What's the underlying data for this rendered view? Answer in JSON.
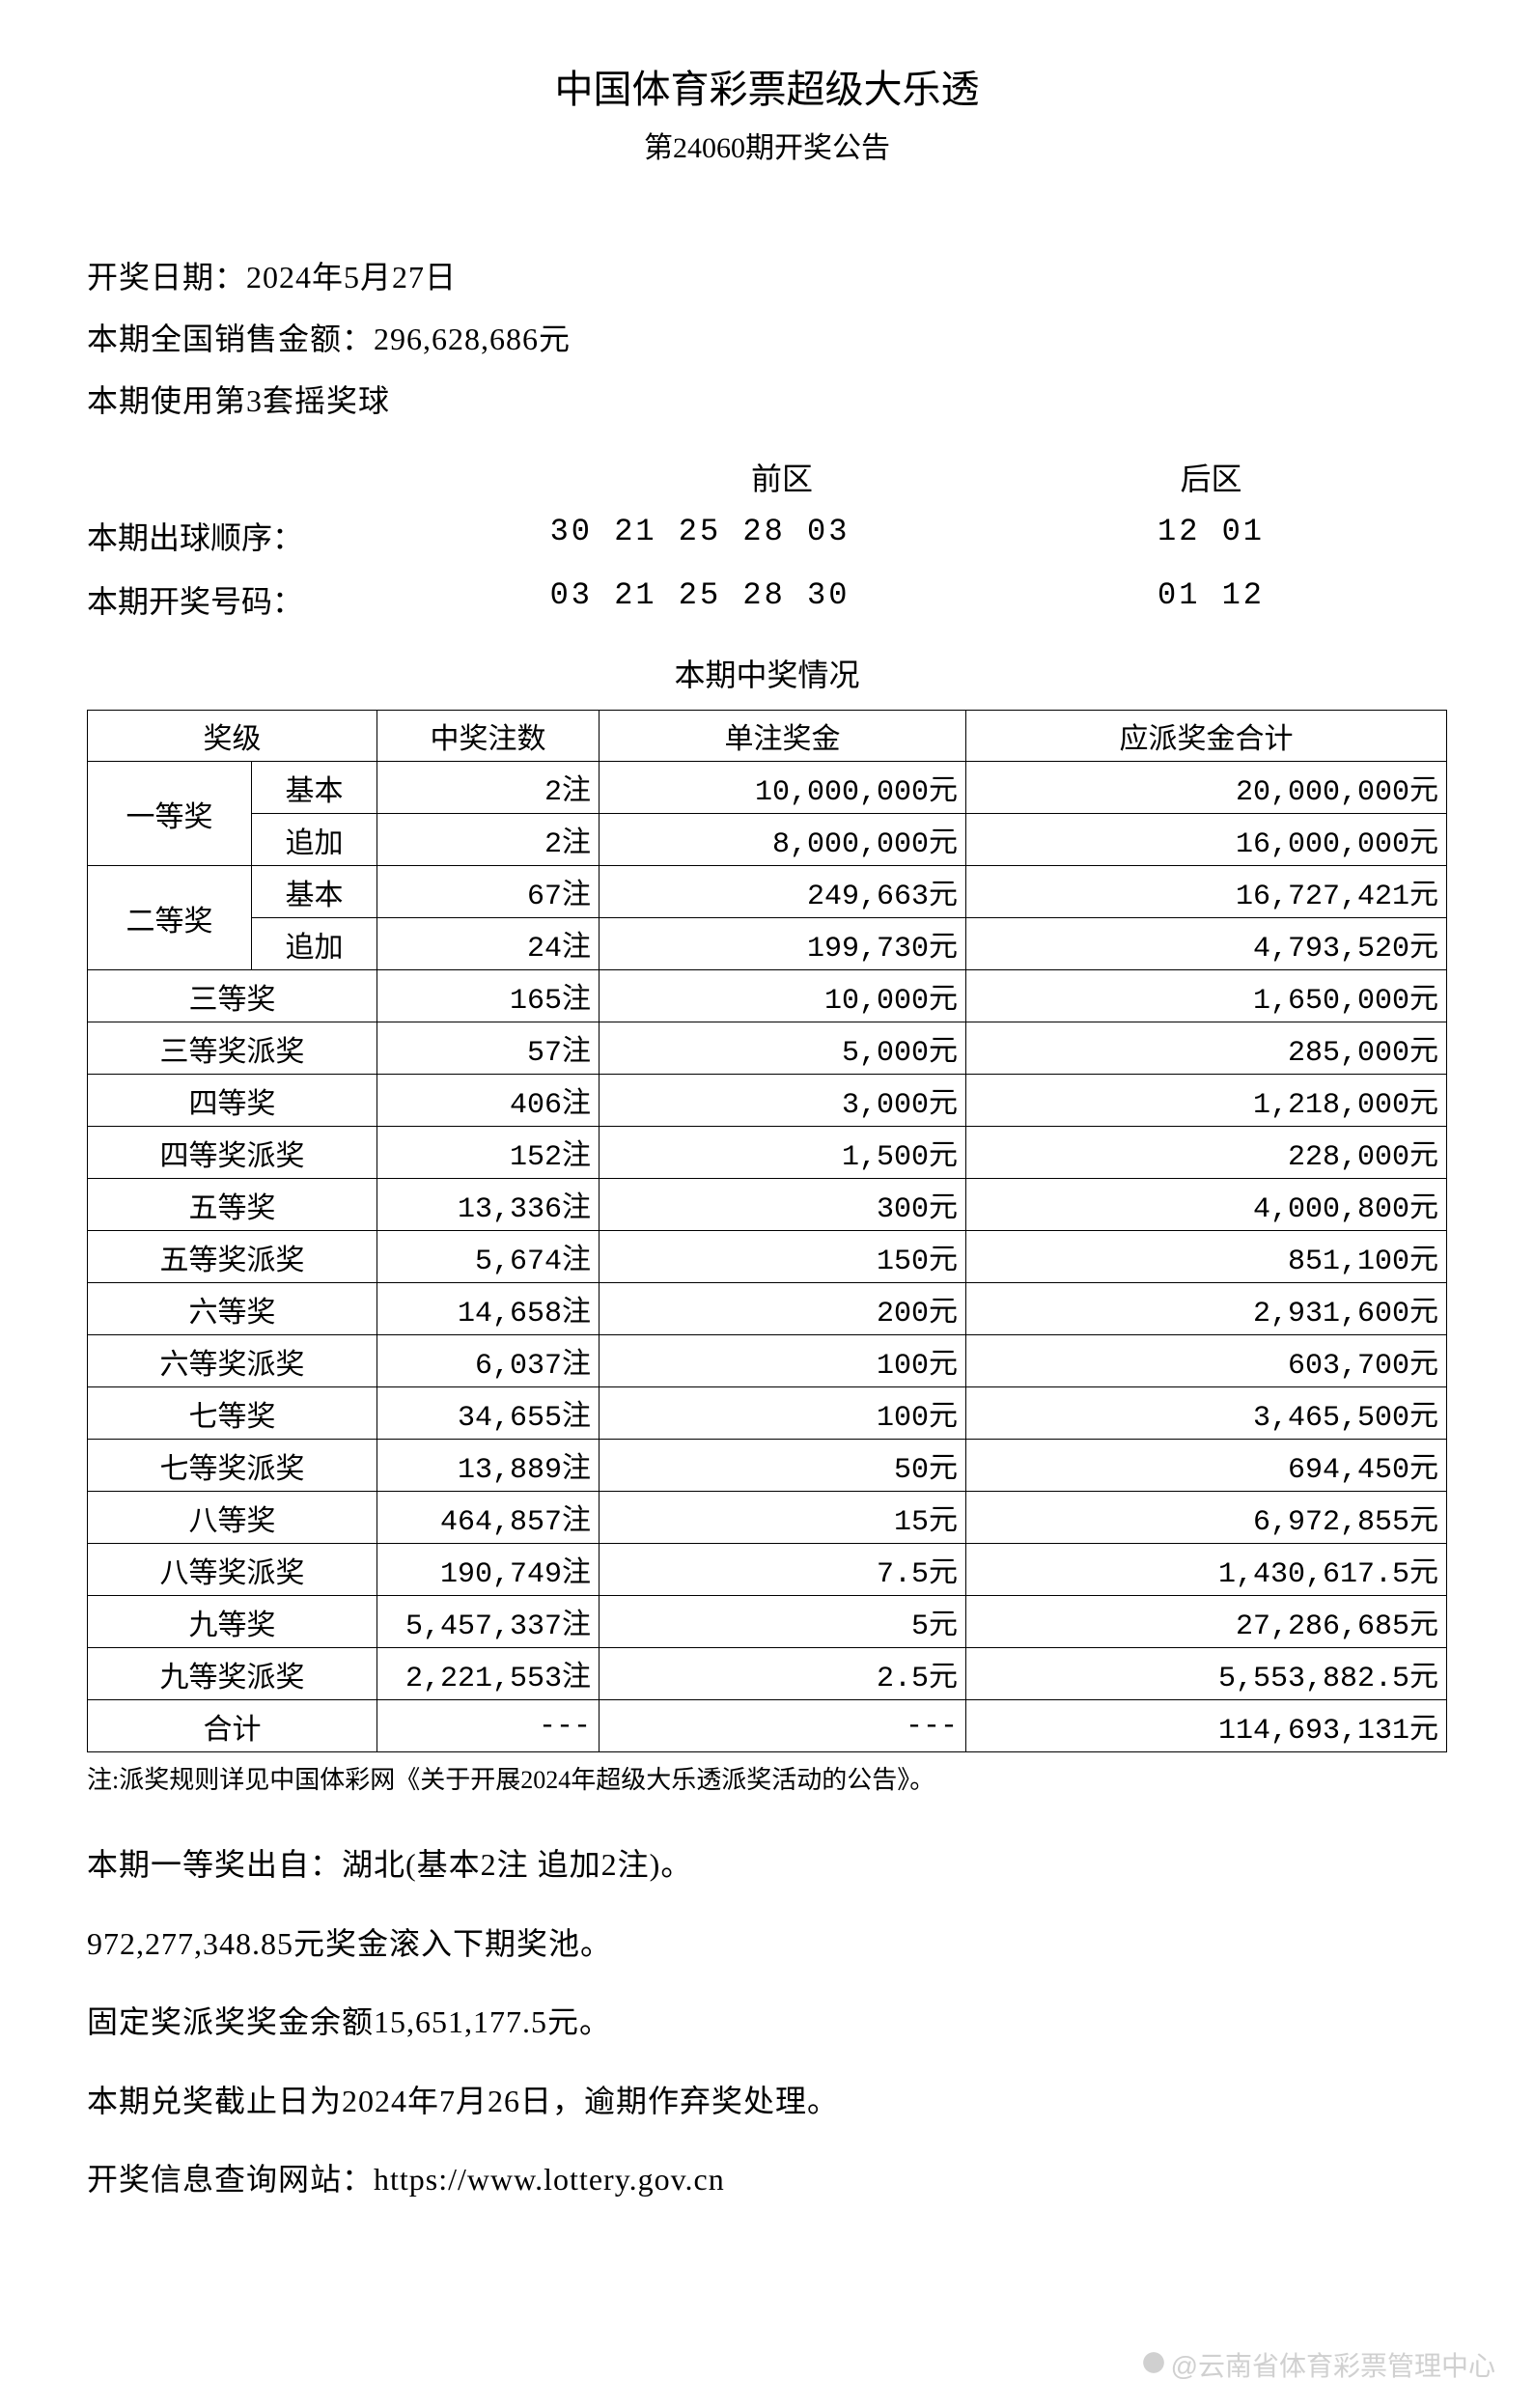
{
  "header": {
    "title": "中国体育彩票超级大乐透",
    "subtitle": "第24060期开奖公告"
  },
  "info": {
    "draw_date_label": "开奖日期：",
    "draw_date": "2024年5月27日",
    "sales_label": "本期全国销售金额：",
    "sales_amount": "296,628,686元",
    "ball_set": "本期使用第3套摇奖球"
  },
  "zones": {
    "front_label": "前区",
    "back_label": "后区",
    "draw_order_label": "本期出球顺序：",
    "winning_label": "本期开奖号码：",
    "draw_order_front": "30 21 25 28 03",
    "draw_order_back": "12 01",
    "winning_front": "03 21 25 28 30",
    "winning_back": "01 12"
  },
  "table": {
    "title": "本期中奖情况",
    "headers": {
      "level": "奖级",
      "count": "中奖注数",
      "prize": "单注奖金",
      "total": "应派奖金合计"
    },
    "rows": [
      {
        "level_main": "一等奖",
        "level_sub": "基本",
        "rowspan": 2,
        "count": "2注",
        "prize": "10,000,000元",
        "total": "20,000,000元"
      },
      {
        "level_sub": "追加",
        "count": "2注",
        "prize": "8,000,000元",
        "total": "16,000,000元"
      },
      {
        "level_main": "二等奖",
        "level_sub": "基本",
        "rowspan": 2,
        "count": "67注",
        "prize": "249,663元",
        "total": "16,727,421元"
      },
      {
        "level_sub": "追加",
        "count": "24注",
        "prize": "199,730元",
        "total": "4,793,520元"
      },
      {
        "level": "三等奖",
        "count": "165注",
        "prize": "10,000元",
        "total": "1,650,000元"
      },
      {
        "level": "三等奖派奖",
        "count": "57注",
        "prize": "5,000元",
        "total": "285,000元"
      },
      {
        "level": "四等奖",
        "count": "406注",
        "prize": "3,000元",
        "total": "1,218,000元"
      },
      {
        "level": "四等奖派奖",
        "count": "152注",
        "prize": "1,500元",
        "total": "228,000元"
      },
      {
        "level": "五等奖",
        "count": "13,336注",
        "prize": "300元",
        "total": "4,000,800元"
      },
      {
        "level": "五等奖派奖",
        "count": "5,674注",
        "prize": "150元",
        "total": "851,100元"
      },
      {
        "level": "六等奖",
        "count": "14,658注",
        "prize": "200元",
        "total": "2,931,600元"
      },
      {
        "level": "六等奖派奖",
        "count": "6,037注",
        "prize": "100元",
        "total": "603,700元"
      },
      {
        "level": "七等奖",
        "count": "34,655注",
        "prize": "100元",
        "total": "3,465,500元"
      },
      {
        "level": "七等奖派奖",
        "count": "13,889注",
        "prize": "50元",
        "total": "694,450元"
      },
      {
        "level": "八等奖",
        "count": "464,857注",
        "prize": "15元",
        "total": "6,972,855元"
      },
      {
        "level": "八等奖派奖",
        "count": "190,749注",
        "prize": "7.5元",
        "total": "1,430,617.5元"
      },
      {
        "level": "九等奖",
        "count": "5,457,337注",
        "prize": "5元",
        "total": "27,286,685元"
      },
      {
        "level": "九等奖派奖",
        "count": "2,221,553注",
        "prize": "2.5元",
        "total": "5,553,882.5元"
      },
      {
        "level": "合计",
        "count": "---",
        "prize": "---",
        "total": "114,693,131元"
      }
    ]
  },
  "note": "注:派奖规则详见中国体彩网《关于开展2024年超级大乐透派奖活动的公告》。",
  "footer": {
    "line1": "本期一等奖出自：湖北(基本2注 追加2注)。",
    "line2": "972,277,348.85元奖金滚入下期奖池。",
    "line3": "固定奖派奖奖金余额15,651,177.5元。",
    "line4": "本期兑奖截止日为2024年7月26日，逾期作弃奖处理。",
    "line5": "开奖信息查询网站：https://www.lottery.gov.cn"
  },
  "watermark": "@云南省体育彩票管理中心",
  "colors": {
    "text": "#000000",
    "background": "#ffffff",
    "border": "#000000",
    "watermark": "#d0d0d0"
  }
}
